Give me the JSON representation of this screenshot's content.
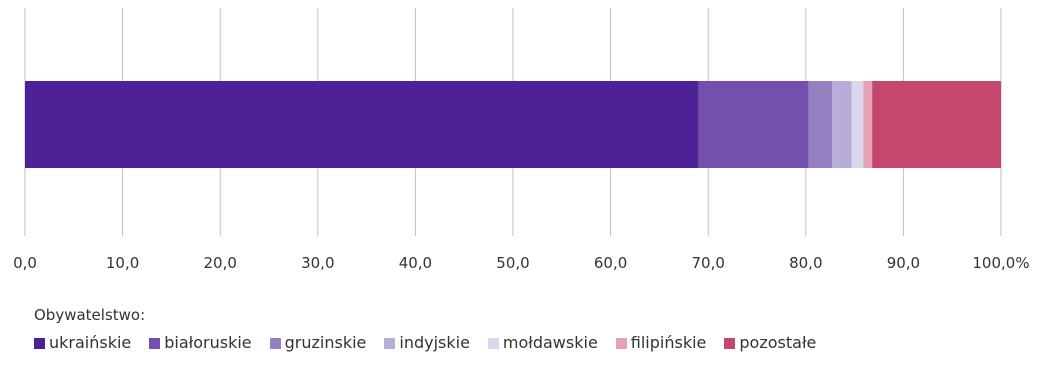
{
  "chart_data": {
    "type": "bar",
    "orientation": "horizontal",
    "stacked": true,
    "categories": [
      ""
    ],
    "series": [
      {
        "name": "ukraińskie",
        "values": [
          69.0
        ],
        "color": "#4f2196"
      },
      {
        "name": "białoruskie",
        "values": [
          11.3
        ],
        "color": "#7350ac"
      },
      {
        "name": "gruzinskie",
        "values": [
          2.4
        ],
        "color": "#9581c2"
      },
      {
        "name": "indyjskie",
        "values": [
          2.0
        ],
        "color": "#b8acd9"
      },
      {
        "name": "mołdawskie",
        "values": [
          1.2
        ],
        "color": "#dbd6ec"
      },
      {
        "name": "filipińskie",
        "values": [
          0.9
        ],
        "color": "#e4a2b6"
      },
      {
        "name": "pozostałe",
        "values": [
          13.2
        ],
        "color": "#c4476e"
      }
    ],
    "xlim": [
      0,
      100
    ],
    "xticks": [
      "0,0",
      "10,0",
      "20,0",
      "30,0",
      "40,0",
      "50,0",
      "60,0",
      "70,0",
      "80,0",
      "90,0",
      "100,0%"
    ],
    "grid": true,
    "gridline_color": "#bfbfbf",
    "legend_title": "Obywatelstwo:",
    "legend_position": "bottom-left"
  }
}
